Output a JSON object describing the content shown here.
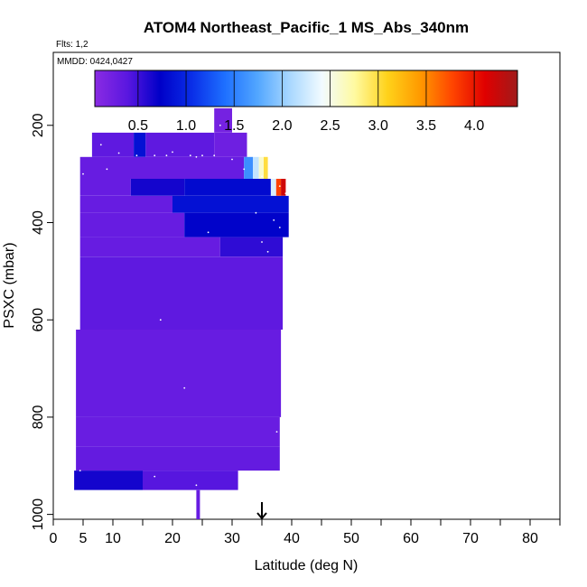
{
  "chart_data": {
    "type": "heatmap",
    "title": "ATOM4 Northeast_Pacific_1 MS_Abs_340nm",
    "flights_label": "Flts: 1,2",
    "dates_label": "MMDD: 0424,0427",
    "xlabel": "Latitude (deg N)",
    "ylabel": "PSXC (mbar)",
    "xlim": [
      0,
      85
    ],
    "ylim": [
      1010,
      50
    ],
    "y_reversed": true,
    "x_ticks": [
      0,
      5,
      10,
      20,
      30,
      40,
      50,
      60,
      70,
      80
    ],
    "x_minor_ticks": [
      15,
      25,
      35,
      45,
      55,
      65,
      75,
      85
    ],
    "y_ticks": [
      200,
      400,
      600,
      800,
      1000
    ],
    "colorbar": {
      "range": [
        0.05,
        4.45
      ],
      "ticks": [
        0.5,
        1.0,
        1.5,
        2.0,
        2.5,
        3.0,
        3.5,
        4.0
      ],
      "tick_labels": [
        "0.5",
        "1.0",
        "1.5",
        "2.0",
        "2.5",
        "3.0",
        "3.5",
        "4.0"
      ],
      "colors": [
        "#8a2be2",
        "#5a17e0",
        "#0000c8",
        "#0a2fe8",
        "#1e70ff",
        "#52a6ff",
        "#a9d8ff",
        "#f2fbff",
        "#fffaa0",
        "#ffd21a",
        "#ff9a00",
        "#ff4500",
        "#e00000",
        "#a01a1a"
      ]
    },
    "marker": {
      "lat": 35,
      "symbol": "arrow"
    },
    "cells": [
      {
        "lat": [
          27,
          30
        ],
        "p": [
          165,
          215
        ],
        "v": 0.2
      },
      {
        "lat": [
          6.5,
          13.5
        ],
        "p": [
          215,
          265
        ],
        "v": 0.35
      },
      {
        "lat": [
          13.5,
          15.5
        ],
        "p": [
          215,
          265
        ],
        "v": 0.85
      },
      {
        "lat": [
          15.5,
          27
        ],
        "p": [
          215,
          265
        ],
        "v": 0.35
      },
      {
        "lat": [
          27,
          32.5
        ],
        "p": [
          215,
          265
        ],
        "v": 0.25
      },
      {
        "lat": [
          4.5,
          32
        ],
        "p": [
          265,
          310
        ],
        "v": 0.3
      },
      {
        "lat": [
          32,
          33.5
        ],
        "p": [
          265,
          310
        ],
        "v": 1.6
      },
      {
        "lat": [
          33.5,
          34.5
        ],
        "p": [
          265,
          310
        ],
        "v": 2.2
      },
      {
        "lat": [
          34.5,
          35.3
        ],
        "p": [
          265,
          310
        ],
        "v": 2.6
      },
      {
        "lat": [
          35.3,
          36
        ],
        "p": [
          265,
          310
        ],
        "v": 3.0
      },
      {
        "lat": [
          4.5,
          13
        ],
        "p": [
          310,
          345
        ],
        "v": 0.3
      },
      {
        "lat": [
          13,
          22
        ],
        "p": [
          310,
          345
        ],
        "v": 0.65
      },
      {
        "lat": [
          22,
          36.5
        ],
        "p": [
          310,
          345
        ],
        "v": 0.8
      },
      {
        "lat": [
          36.5,
          37.4
        ],
        "p": [
          310,
          345
        ],
        "v": 2.3
      },
      {
        "lat": [
          37.4,
          38.2
        ],
        "p": [
          310,
          345
        ],
        "v": 3.8
      },
      {
        "lat": [
          38.2,
          39
        ],
        "p": [
          310,
          345
        ],
        "v": 4.2
      },
      {
        "lat": [
          4.5,
          20
        ],
        "p": [
          345,
          380
        ],
        "v": 0.3
      },
      {
        "lat": [
          20,
          39.5
        ],
        "p": [
          345,
          380
        ],
        "v": 0.85
      },
      {
        "lat": [
          4.5,
          22
        ],
        "p": [
          380,
          430
        ],
        "v": 0.3
      },
      {
        "lat": [
          22,
          39.5
        ],
        "p": [
          380,
          430
        ],
        "v": 0.75
      },
      {
        "lat": [
          4.5,
          28
        ],
        "p": [
          430,
          470
        ],
        "v": 0.3
      },
      {
        "lat": [
          28,
          38.5
        ],
        "p": [
          430,
          470
        ],
        "v": 0.55
      },
      {
        "lat": [
          4.5,
          38.5
        ],
        "p": [
          470,
          620
        ],
        "v": 0.35
      },
      {
        "lat": [
          3.8,
          38.2
        ],
        "p": [
          620,
          800
        ],
        "v": 0.3
      },
      {
        "lat": [
          3.8,
          38
        ],
        "p": [
          800,
          860
        ],
        "v": 0.28
      },
      {
        "lat": [
          3.8,
          38
        ],
        "p": [
          860,
          910
        ],
        "v": 0.32
      },
      {
        "lat": [
          3.5,
          15
        ],
        "p": [
          910,
          950
        ],
        "v": 0.65
      },
      {
        "lat": [
          15,
          31
        ],
        "p": [
          910,
          950
        ],
        "v": 0.4
      },
      {
        "lat": [
          24,
          24.6
        ],
        "p": [
          950,
          1010
        ],
        "v": 0.3
      }
    ],
    "points": [
      [
        28,
        200
      ],
      [
        8,
        240
      ],
      [
        11,
        257
      ],
      [
        14,
        262
      ],
      [
        17,
        262
      ],
      [
        19,
        262
      ],
      [
        20,
        255
      ],
      [
        23,
        262
      ],
      [
        24,
        265
      ],
      [
        25,
        262
      ],
      [
        27,
        262
      ],
      [
        30,
        270
      ],
      [
        32,
        290
      ],
      [
        35,
        305
      ],
      [
        38,
        325
      ],
      [
        39,
        340
      ],
      [
        34,
        380
      ],
      [
        37,
        395
      ],
      [
        38,
        410
      ],
      [
        35,
        440
      ],
      [
        36,
        460
      ],
      [
        26,
        420
      ],
      [
        18,
        600
      ],
      [
        22,
        740
      ],
      [
        37.5,
        830
      ],
      [
        4.5,
        910
      ],
      [
        17,
        922
      ],
      [
        24,
        940
      ],
      [
        6.5,
        962
      ],
      [
        10,
        958
      ],
      [
        16,
        968
      ],
      [
        20,
        1000
      ],
      [
        5,
        300
      ],
      [
        9,
        290
      ]
    ]
  }
}
